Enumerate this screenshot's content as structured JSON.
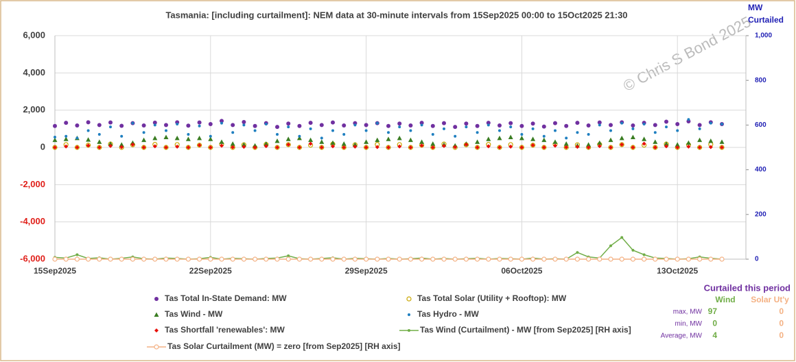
{
  "chart_data": {
    "type": "line",
    "title": "Tasmania:  [including curtailment]:  NEM data at 30-minute intervals from 15Sep2025 00:00 to 15Oct2025 21:30",
    "y2_label": "MW Curtailed",
    "watermark": "© Chris S Bond  2025",
    "grid": true,
    "legend": "bottom",
    "categories": [
      "15Sep2025",
      null,
      null,
      null,
      null,
      null,
      null,
      null,
      null,
      null,
      null,
      null,
      null,
      null,
      "22Sep2025",
      null,
      null,
      null,
      null,
      null,
      null,
      null,
      null,
      null,
      null,
      null,
      null,
      null,
      "29Sep2025",
      null,
      null,
      null,
      null,
      null,
      null,
      null,
      null,
      null,
      null,
      null,
      null,
      null,
      "06Oct2025",
      null,
      null,
      null,
      null,
      null,
      null,
      null,
      null,
      null,
      null,
      null,
      null,
      null,
      "13Oct2025",
      null,
      null,
      null,
      null
    ],
    "ylim": [
      -6000,
      6000
    ],
    "yticks": [
      {
        "value": -6000,
        "label": "-6,000"
      },
      {
        "value": -4000,
        "label": "-4,000"
      },
      {
        "value": -2000,
        "label": "-2,000"
      },
      0,
      {
        "value": 2000,
        "label": "2,000"
      },
      {
        "value": 4000,
        "label": "4,000"
      },
      {
        "value": 6000,
        "label": "6,000"
      }
    ],
    "y2lim": [
      0,
      1000
    ],
    "y2ticks": [
      0,
      200,
      400,
      600,
      800,
      {
        "value": 1000,
        "label": "1,000"
      }
    ],
    "series": [
      {
        "name": "Tas Total In-State Demand: MW",
        "color": "#7030a0",
        "marker": "circle",
        "values": [
          1150,
          1320,
          1180,
          1350,
          1200,
          1340,
          1160,
          1300,
          1180,
          1330,
          1200,
          1350,
          1170,
          1340,
          1250,
          1420,
          1200,
          1360,
          1150,
          1300,
          1100,
          1280,
          1150,
          1320,
          1200,
          1340,
          1180,
          1300,
          1200,
          1300,
          1150,
          1280,
          1180,
          1320,
          1150,
          1300,
          1100,
          1280,
          1150,
          1320,
          1180,
          1300,
          1150,
          1280,
          1120,
          1300,
          1150,
          1320,
          1180,
          1340,
          1200,
          1350,
          1180,
          1320,
          1200,
          1380,
          1250,
          1400,
          1200,
          1350,
          1250
        ]
      },
      {
        "name": "Tas Total Solar (Utility + Rooftop): MW",
        "color": "#c9a600",
        "marker": "ring",
        "values": [
          0,
          150,
          0,
          120,
          0,
          180,
          0,
          140,
          0,
          160,
          0,
          150,
          0,
          120,
          0,
          180,
          0,
          140,
          0,
          160,
          0,
          150,
          0,
          120,
          0,
          180,
          0,
          140,
          0,
          160,
          0,
          150,
          0,
          120,
          0,
          180,
          0,
          140,
          0,
          160,
          0,
          150,
          0,
          120,
          0,
          180,
          0,
          140,
          0,
          160,
          0,
          150,
          0,
          120,
          0,
          180,
          0,
          140,
          0,
          160,
          0
        ]
      },
      {
        "name": "Tas Wind -  MW",
        "color": "#3a7d22",
        "marker": "triangle",
        "values": [
          400,
          450,
          500,
          420,
          300,
          200,
          150,
          250,
          400,
          500,
          550,
          500,
          450,
          500,
          450,
          300,
          200,
          150,
          100,
          200,
          350,
          450,
          500,
          400,
          300,
          250,
          200,
          150,
          300,
          400,
          450,
          500,
          400,
          300,
          200,
          150,
          100,
          200,
          300,
          450,
          500,
          550,
          500,
          450,
          400,
          300,
          200,
          100,
          150,
          250,
          400,
          500,
          550,
          450,
          300,
          200,
          150,
          250,
          400,
          350,
          300
        ]
      },
      {
        "name": "Tas Hydro -  MW",
        "color": "#1f7fc0",
        "marker": "dot",
        "values": [
          550,
          600,
          500,
          900,
          700,
          1100,
          600,
          1300,
          800,
          1200,
          900,
          1250,
          700,
          1150,
          600,
          1300,
          800,
          1200,
          900,
          1250,
          700,
          1100,
          600,
          1000,
          500,
          900,
          700,
          1200,
          900,
          1300,
          800,
          1100,
          900,
          1200,
          700,
          1000,
          600,
          1100,
          800,
          1200,
          900,
          1100,
          700,
          1000,
          600,
          900,
          500,
          800,
          700,
          1200,
          900,
          1300,
          1000,
          1250,
          800,
          1100,
          900,
          1500,
          1000,
          1300,
          1250
        ]
      },
      {
        "name": "Tas Shortfall 'renewables': MW",
        "color": "#e8100a",
        "marker": "diamond",
        "values": [
          0,
          50,
          0,
          100,
          0,
          80,
          20,
          150,
          0,
          60,
          0,
          40,
          0,
          120,
          0,
          90,
          10,
          30,
          0,
          70,
          0,
          150,
          0,
          200,
          0,
          60,
          0,
          40,
          0,
          20,
          0,
          50,
          0,
          100,
          0,
          80,
          20,
          150,
          0,
          60,
          0,
          40,
          0,
          120,
          0,
          90,
          10,
          30,
          0,
          70,
          0,
          150,
          0,
          200,
          0,
          60,
          0,
          40,
          0,
          20,
          0
        ]
      },
      {
        "name": "Tas Wind (Curtailment) -  MW [from Sep2025] [RH axis]",
        "color": "#70ad47",
        "marker": "dot",
        "line": true,
        "axis": "y2",
        "values": [
          8,
          5,
          20,
          3,
          6,
          0,
          4,
          10,
          2,
          0,
          5,
          3,
          0,
          2,
          8,
          0,
          4,
          2,
          0,
          3,
          5,
          15,
          2,
          0,
          3,
          6,
          0,
          4,
          2,
          0,
          3,
          0,
          2,
          5,
          0,
          3,
          0,
          2,
          4,
          0,
          3,
          2,
          0,
          5,
          0,
          2,
          0,
          30,
          10,
          5,
          60,
          97,
          40,
          20,
          5,
          3,
          0,
          2,
          10,
          4,
          0
        ]
      },
      {
        "name": "Tas Solar Curtailment (MW) = zero [from Sep2025] [RH axis]",
        "color": "#f4b183",
        "marker": "ring",
        "line": true,
        "axis": "y2",
        "values": [
          0,
          0,
          0,
          0,
          0,
          0,
          0,
          0,
          0,
          0,
          0,
          0,
          0,
          0,
          0,
          0,
          0,
          0,
          0,
          0,
          0,
          0,
          0,
          0,
          0,
          0,
          0,
          0,
          0,
          0,
          0,
          0,
          0,
          0,
          0,
          0,
          0,
          0,
          0,
          0,
          0,
          0,
          0,
          0,
          0,
          0,
          0,
          0,
          0,
          0,
          0,
          0,
          0,
          0,
          0,
          0,
          0,
          0,
          0,
          0,
          0
        ]
      }
    ],
    "summary": {
      "title": "Curtailed this period",
      "columns": [
        "Wind",
        "Solar Ut'y"
      ],
      "rows": [
        {
          "label": "max, MW",
          "values": [
            97,
            0
          ]
        },
        {
          "label": "min, MW",
          "values": [
            0,
            0
          ]
        },
        {
          "label": "Average, MW",
          "values": [
            4,
            0
          ]
        }
      ]
    }
  }
}
